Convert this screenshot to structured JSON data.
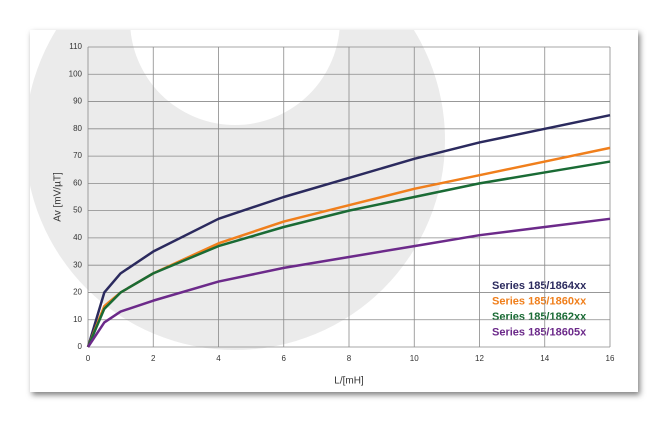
{
  "chart_data": {
    "type": "line",
    "x_label": "L/[mH]",
    "y_label": "Av [mV/µT]",
    "x": [
      0,
      0.5,
      1,
      2,
      4,
      6,
      8,
      10,
      12,
      14,
      16
    ],
    "series": [
      {
        "name": "Series 185/1864xx",
        "color": "#2b2a5e",
        "values": [
          0,
          20,
          27,
          35,
          47,
          55,
          62,
          69,
          75,
          80,
          85
        ]
      },
      {
        "name": "Series 185/1860xx",
        "color": "#f07f1c",
        "values": [
          0,
          15,
          20,
          27,
          38,
          46,
          52,
          58,
          63,
          68,
          73
        ]
      },
      {
        "name": "Series 185/1862xx",
        "color": "#1a6b35",
        "values": [
          0,
          14,
          20,
          27,
          37,
          44,
          50,
          55,
          60,
          64,
          68
        ]
      },
      {
        "name": "Series 185/18605x",
        "color": "#6c2a8a",
        "values": [
          0,
          9,
          13,
          17,
          24,
          29,
          33,
          37,
          41,
          44,
          47
        ]
      }
    ],
    "xlim": [
      0,
      16
    ],
    "xticks": [
      0,
      2,
      4,
      6,
      8,
      10,
      12,
      14,
      16
    ],
    "ylim": [
      0,
      110
    ],
    "yticks": [
      0,
      10,
      20,
      30,
      40,
      50,
      60,
      70,
      80,
      90,
      100,
      110
    ],
    "grid": true
  }
}
